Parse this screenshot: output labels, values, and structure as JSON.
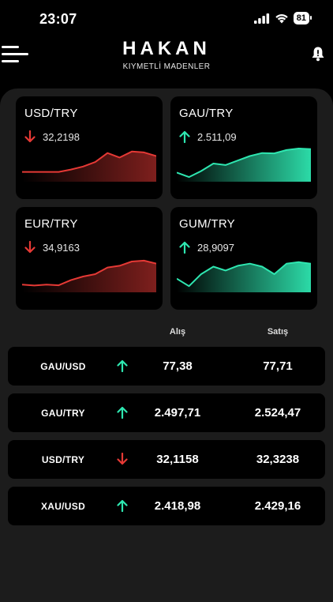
{
  "status": {
    "time": "23:07",
    "battery": "81"
  },
  "header": {
    "title": "HAKAN",
    "subtitle": "KIYMETLİ MADENLER"
  },
  "colors": {
    "up": "#2ee6b0",
    "down": "#e53935",
    "panel": "#1c1c1c",
    "card": "#000000"
  },
  "cards": [
    {
      "symbol": "USD/TRY",
      "value": "32,2198",
      "trend": "down",
      "spark": [
        0.22,
        0.22,
        0.22,
        0.22,
        0.3,
        0.4,
        0.55,
        0.85,
        0.7,
        0.9,
        0.87,
        0.75
      ]
    },
    {
      "symbol": "GAU/TRY",
      "value": "2.511,09",
      "trend": "up",
      "spark": [
        0.2,
        0.05,
        0.25,
        0.5,
        0.45,
        0.6,
        0.75,
        0.85,
        0.84,
        0.95,
        1.0,
        0.98
      ]
    },
    {
      "symbol": "EUR/TRY",
      "value": "34,9163",
      "trend": "down",
      "spark": [
        0.15,
        0.12,
        0.15,
        0.13,
        0.3,
        0.42,
        0.5,
        0.72,
        0.78,
        0.92,
        0.95,
        0.85
      ]
    },
    {
      "symbol": "GUM/TRY",
      "value": "28,9097",
      "trend": "up",
      "spark": [
        0.35,
        0.1,
        0.5,
        0.75,
        0.62,
        0.78,
        0.85,
        0.75,
        0.5,
        0.85,
        0.9,
        0.85
      ]
    }
  ],
  "table": {
    "bid_label": "Alış",
    "ask_label": "Satış",
    "rows": [
      {
        "symbol": "GAU/USD",
        "trend": "up",
        "bid": "77,38",
        "ask": "77,71"
      },
      {
        "symbol": "GAU/TRY",
        "trend": "up",
        "bid": "2.497,71",
        "ask": "2.524,47"
      },
      {
        "symbol": "USD/TRY",
        "trend": "down",
        "bid": "32,1158",
        "ask": "32,3238"
      },
      {
        "symbol": "XAU/USD",
        "trend": "up",
        "bid": "2.418,98",
        "ask": "2.429,16"
      }
    ]
  }
}
